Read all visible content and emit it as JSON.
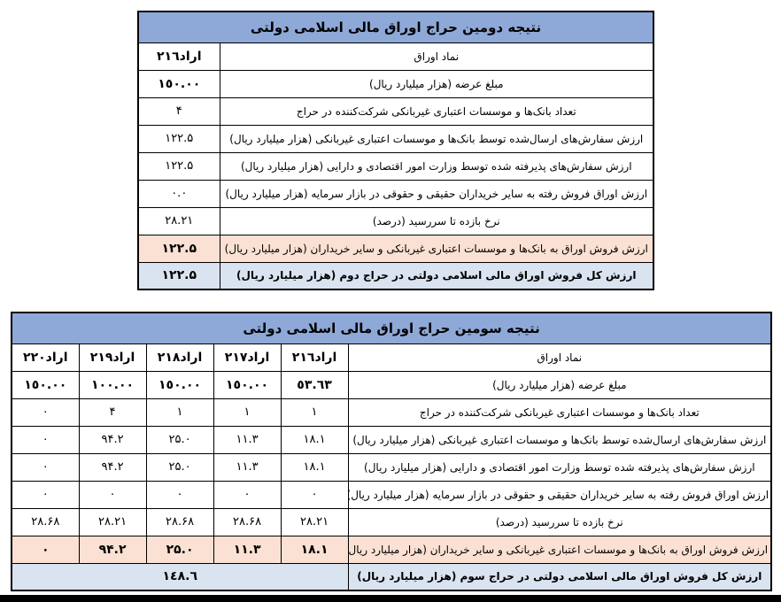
{
  "colors": {
    "header_blue": "#8EA9D8",
    "row_peach": "#FBE1D3",
    "row_blue": "#DAE3F0",
    "border_black": "#000000"
  },
  "table_second_auction": {
    "title": "نتیجه دومین حراج اوراق مالی اسلامی دولتی",
    "rows": [
      {
        "label": "نماد اوراق",
        "value": "اراد٢١٦",
        "bold_value": true
      },
      {
        "label": "مبلغ عرضه (هزار میلیارد ریال)",
        "value": "١٥٠.٠٠",
        "bold_value": true
      },
      {
        "label": "تعداد بانک‌ها و موسسات اعتباری غیربانکی شرکت‌کننده در حراج",
        "value": "۴"
      },
      {
        "label": "ارزش سفارش‌های ارسال‌شده توسط بانک‌ها و موسسات اعتباری غیربانکی (هزار میلیارد ریال)",
        "value": "۱۲۲.۵"
      },
      {
        "label": "ارزش سفارش‌های پذیرفته شده توسط وزارت امور اقتصادی و دارایی (هزار میلیارد ریال)",
        "value": "۱۲۲.۵"
      },
      {
        "label": "ارزش اوراق فروش رفته به سایر خریداران حقیقی و حقوقی در بازار سرمایه (هزار میلیارد ریال)",
        "value": "٠.٠"
      },
      {
        "label": "نرخ بازده تا سررسید (درصد)",
        "value": "٢٨.٢١"
      },
      {
        "label": "ارزش فروش اوراق به بانک‌ها و موسسات اعتباری غیربانکی و سایر خریداران (هزار میلیارد ریال)",
        "value": "۱۲۲.۵",
        "bold_value": true,
        "bg": "peach"
      },
      {
        "label": "ارزش کل فروش اوراق مالی اسلامی دولتی در حراج دوم (هزار میلیارد ریال)",
        "value": "۱۲۲.۵",
        "bold_value": true,
        "bold_label": true,
        "bg": "blue"
      }
    ]
  },
  "table_third_auction": {
    "title": "نتیجه سومین حراج اوراق مالی اسلامی دولتی",
    "symbol_row_label": "نماد اوراق",
    "symbols": [
      "اراد٢١٦",
      "اراد٢١٧",
      "اراد٢١٨",
      "اراد٢١٩",
      "اراد٢٢٠"
    ],
    "rows": [
      {
        "label": "مبلغ عرضه (هزار میلیارد ریال)",
        "values": [
          "٥٣.٦٣",
          "١٥٠.٠٠",
          "١٥٠.٠٠",
          "١٠٠.٠٠",
          "١٥٠.٠٠"
        ],
        "bold_values": true
      },
      {
        "label": "تعداد بانک‌ها و موسسات اعتباری غیربانکی شرکت‌کننده در حراج",
        "values": [
          "١",
          "١",
          "١",
          "۴",
          "٠"
        ]
      },
      {
        "label": "ارزش سفارش‌های ارسال‌شده توسط بانک‌ها و موسسات اعتباری غیربانکی (هزار میلیارد ریال)",
        "values": [
          "١٨.١",
          "١١.٣",
          "۲۵.۰",
          "۹۴.۲",
          "٠"
        ]
      },
      {
        "label": "ارزش سفارش‌های پذیرفته شده توسط وزارت امور اقتصادی و دارایی (هزار میلیارد ریال)",
        "values": [
          "١٨.١",
          "١١.٣",
          "۲۵.۰",
          "۹۴.۲",
          "٠"
        ]
      },
      {
        "label": "ارزش اوراق فروش رفته به سایر خریداران حقیقی و حقوقی در بازار سرمایه (هزار میلیارد ریال)",
        "values": [
          "٠",
          "٠",
          "٠",
          "٠",
          "٠"
        ]
      },
      {
        "label": "نرخ بازده تا سررسید (درصد)",
        "values": [
          "٢٨.٢١",
          "۲۸.۶۸",
          "۲۸.۶۸",
          "٢٨.٢١",
          "۲۸.۶۸"
        ]
      },
      {
        "label": "ارزش فروش اوراق به بانک‌ها و موسسات اعتباری غیربانکی و سایر خریداران (هزار میلیارد ریال)",
        "values": [
          "١٨.١",
          "١١.٣",
          "۲۵.۰",
          "۹۴.۲",
          "٠"
        ],
        "bold_values": true,
        "bg": "peach"
      },
      {
        "label": "ارزش کل فروش اوراق مالی اسلامی دولتی در حراج سوم (هزار میلیارد ریال)",
        "merged_value": "١٤٨.٦",
        "bold_values": true,
        "bold_label": true,
        "bg": "blue"
      }
    ]
  }
}
